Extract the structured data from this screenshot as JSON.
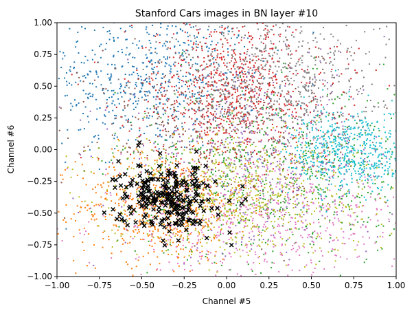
{
  "chart_data": {
    "type": "scatter",
    "title": "Stanford Cars images in BN layer #10",
    "xlabel": "Channel #5",
    "ylabel": "Channel #6",
    "xlim": [
      -1.0,
      1.0
    ],
    "ylim": [
      -1.0,
      1.0
    ],
    "xticks": [
      -1.0,
      -0.75,
      -0.5,
      -0.25,
      0.0,
      0.25,
      0.5,
      0.75,
      1.0
    ],
    "xtick_labels": [
      "−1.00",
      "−0.75",
      "−0.50",
      "−0.25",
      "0.00",
      "0.25",
      "0.50",
      "0.75",
      "1.00"
    ],
    "yticks": [
      -1.0,
      -0.75,
      -0.5,
      -0.25,
      0.0,
      0.25,
      0.5,
      0.75,
      1.0
    ],
    "ytick_labels": [
      "−1.00",
      "−0.75",
      "−0.50",
      "−0.25",
      "0.00",
      "0.25",
      "0.50",
      "0.75",
      "1.00"
    ],
    "grid": false,
    "legend": "none",
    "series": [
      {
        "color": "#1f77b4",
        "marker": "point",
        "center": [
          -0.45,
          0.55
        ],
        "spread": [
          0.32,
          0.28
        ],
        "count": 650
      },
      {
        "color": "#ff7f0e",
        "marker": "point",
        "center": [
          -0.38,
          -0.45
        ],
        "spread": [
          0.25,
          0.22
        ],
        "count": 650
      },
      {
        "color": "#2ca02c",
        "marker": "point",
        "center": [
          0.25,
          -0.2
        ],
        "spread": [
          0.45,
          0.35
        ],
        "count": 700
      },
      {
        "color": "#d62728",
        "marker": "point",
        "center": [
          0.05,
          0.45
        ],
        "spread": [
          0.3,
          0.3
        ],
        "count": 800
      },
      {
        "color": "#9467bd",
        "marker": "point",
        "center": [
          0.2,
          -0.1
        ],
        "spread": [
          0.4,
          0.35
        ],
        "count": 500
      },
      {
        "color": "#8c564b",
        "marker": "point",
        "center": [
          -0.05,
          0.25
        ],
        "spread": [
          0.38,
          0.32
        ],
        "count": 450
      },
      {
        "color": "#e377c2",
        "marker": "point",
        "center": [
          0.2,
          -0.55
        ],
        "spread": [
          0.45,
          0.25
        ],
        "count": 650
      },
      {
        "color": "#7f7f7f",
        "marker": "point",
        "center": [
          0.3,
          0.55
        ],
        "spread": [
          0.3,
          0.28
        ],
        "count": 600
      },
      {
        "color": "#bcbd22",
        "marker": "point",
        "center": [
          0.05,
          -0.35
        ],
        "spread": [
          0.4,
          0.25
        ],
        "count": 750
      },
      {
        "color": "#17becf",
        "marker": "point",
        "center": [
          0.72,
          -0.02
        ],
        "spread": [
          0.18,
          0.17
        ],
        "count": 550
      },
      {
        "color": "#000000",
        "marker": "x",
        "center": [
          -0.35,
          -0.38
        ],
        "spread": [
          0.14,
          0.13
        ],
        "count": 260
      }
    ]
  }
}
